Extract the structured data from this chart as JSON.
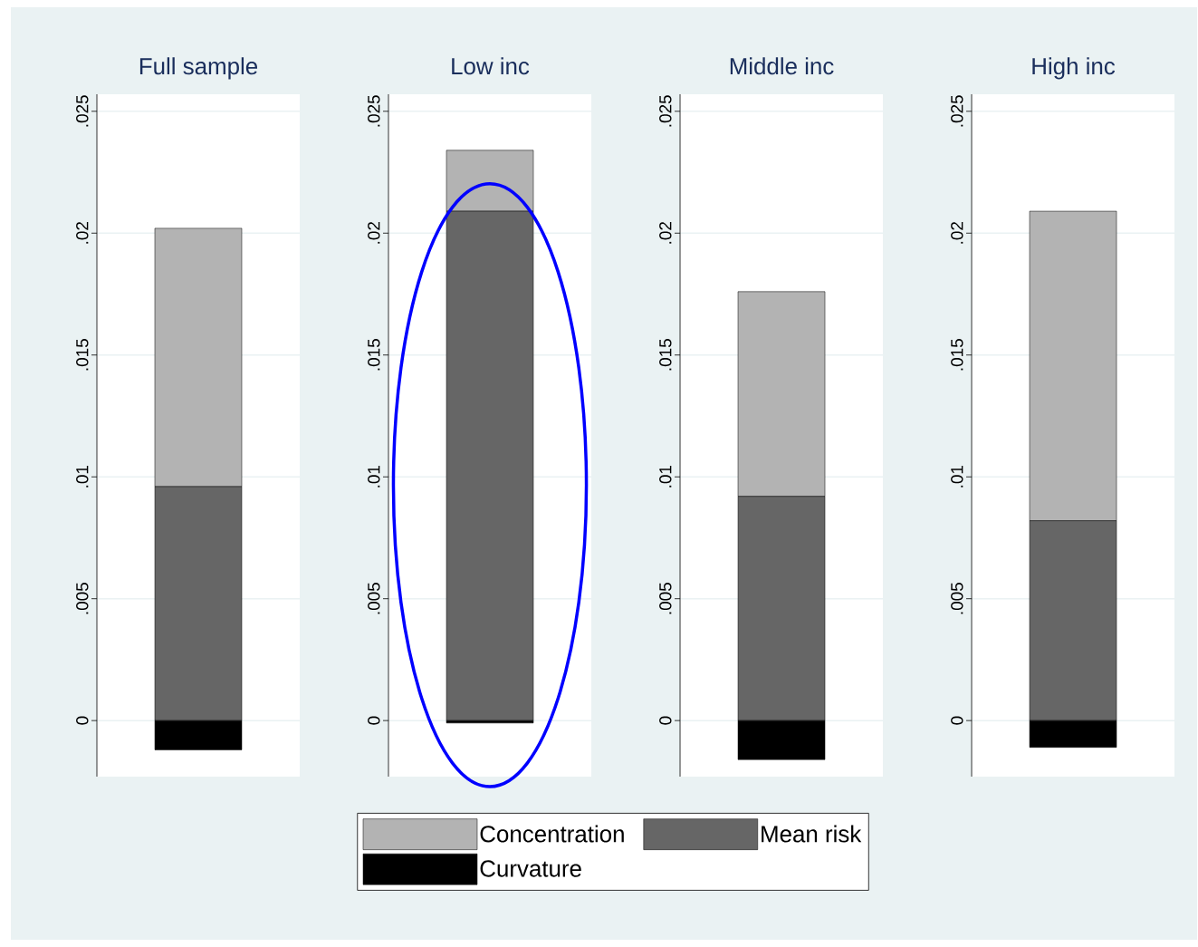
{
  "chart_data": [
    {
      "type": "bar",
      "title": "Full sample",
      "categories": [
        null
      ],
      "stacked": true,
      "grid": "y",
      "legend": "bottom",
      "ylim": [
        -0.0023,
        0.0257
      ],
      "yticks": [
        {
          "value": 0,
          "label": "0"
        },
        {
          "value": 0.005,
          "label": ".005"
        },
        {
          "value": 0.01,
          "label": ".01"
        },
        {
          "value": 0.015,
          "label": ".015"
        },
        {
          "value": 0.02,
          "label": ".02"
        },
        {
          "value": 0.025,
          "label": ".025"
        }
      ],
      "series": [
        {
          "name": "Mean risk",
          "color": "#666666",
          "values": [
            0.0096
          ]
        },
        {
          "name": "Concentration",
          "color": "#b3b3b3",
          "values": [
            0.0106
          ]
        },
        {
          "name": "Curvature",
          "color": "#000000",
          "values": [
            -0.0012
          ]
        }
      ]
    },
    {
      "type": "bar",
      "title": "Low inc",
      "categories": [
        null
      ],
      "stacked": true,
      "grid": "y",
      "ylim": [
        -0.0023,
        0.0257
      ],
      "yticks": [
        {
          "value": 0,
          "label": "0"
        },
        {
          "value": 0.005,
          "label": ".005"
        },
        {
          "value": 0.01,
          "label": ".01"
        },
        {
          "value": 0.015,
          "label": ".015"
        },
        {
          "value": 0.02,
          "label": ".02"
        },
        {
          "value": 0.025,
          "label": ".025"
        }
      ],
      "series": [
        {
          "color": "#666666",
          "values": [
            0.0209
          ]
        },
        {
          "color": "#b3b3b3",
          "values": [
            0.0025
          ]
        },
        {
          "color": "#000000",
          "values": [
            -0.0001
          ]
        }
      ]
    },
    {
      "type": "bar",
      "title": "Middle inc",
      "categories": [
        null
      ],
      "stacked": true,
      "grid": "y",
      "ylim": [
        -0.0023,
        0.0257
      ],
      "yticks": [
        {
          "value": 0,
          "label": "0"
        },
        {
          "value": 0.005,
          "label": ".005"
        },
        {
          "value": 0.01,
          "label": ".01"
        },
        {
          "value": 0.015,
          "label": ".015"
        },
        {
          "value": 0.02,
          "label": ".02"
        },
        {
          "value": 0.025,
          "label": ".025"
        }
      ],
      "series": [
        {
          "color": "#666666",
          "values": [
            0.0092
          ]
        },
        {
          "color": "#b3b3b3",
          "values": [
            0.0084
          ]
        },
        {
          "color": "#000000",
          "values": [
            -0.0016
          ]
        }
      ]
    },
    {
      "type": "bar",
      "title": "High inc",
      "categories": [
        null
      ],
      "stacked": true,
      "grid": "y",
      "ylim": [
        -0.0023,
        0.0257
      ],
      "yticks": [
        {
          "value": 0,
          "label": "0"
        },
        {
          "value": 0.005,
          "label": ".005"
        },
        {
          "value": 0.01,
          "label": ".01"
        },
        {
          "value": 0.015,
          "label": ".015"
        },
        {
          "value": 0.02,
          "label": ".02"
        },
        {
          "value": 0.025,
          "label": ".025"
        }
      ],
      "series": [
        {
          "color": "#666666",
          "values": [
            0.0082
          ]
        },
        {
          "color": "#b3b3b3",
          "values": [
            0.0127
          ]
        },
        {
          "color": "#000000",
          "values": [
            -0.0011
          ]
        }
      ]
    }
  ]
}
